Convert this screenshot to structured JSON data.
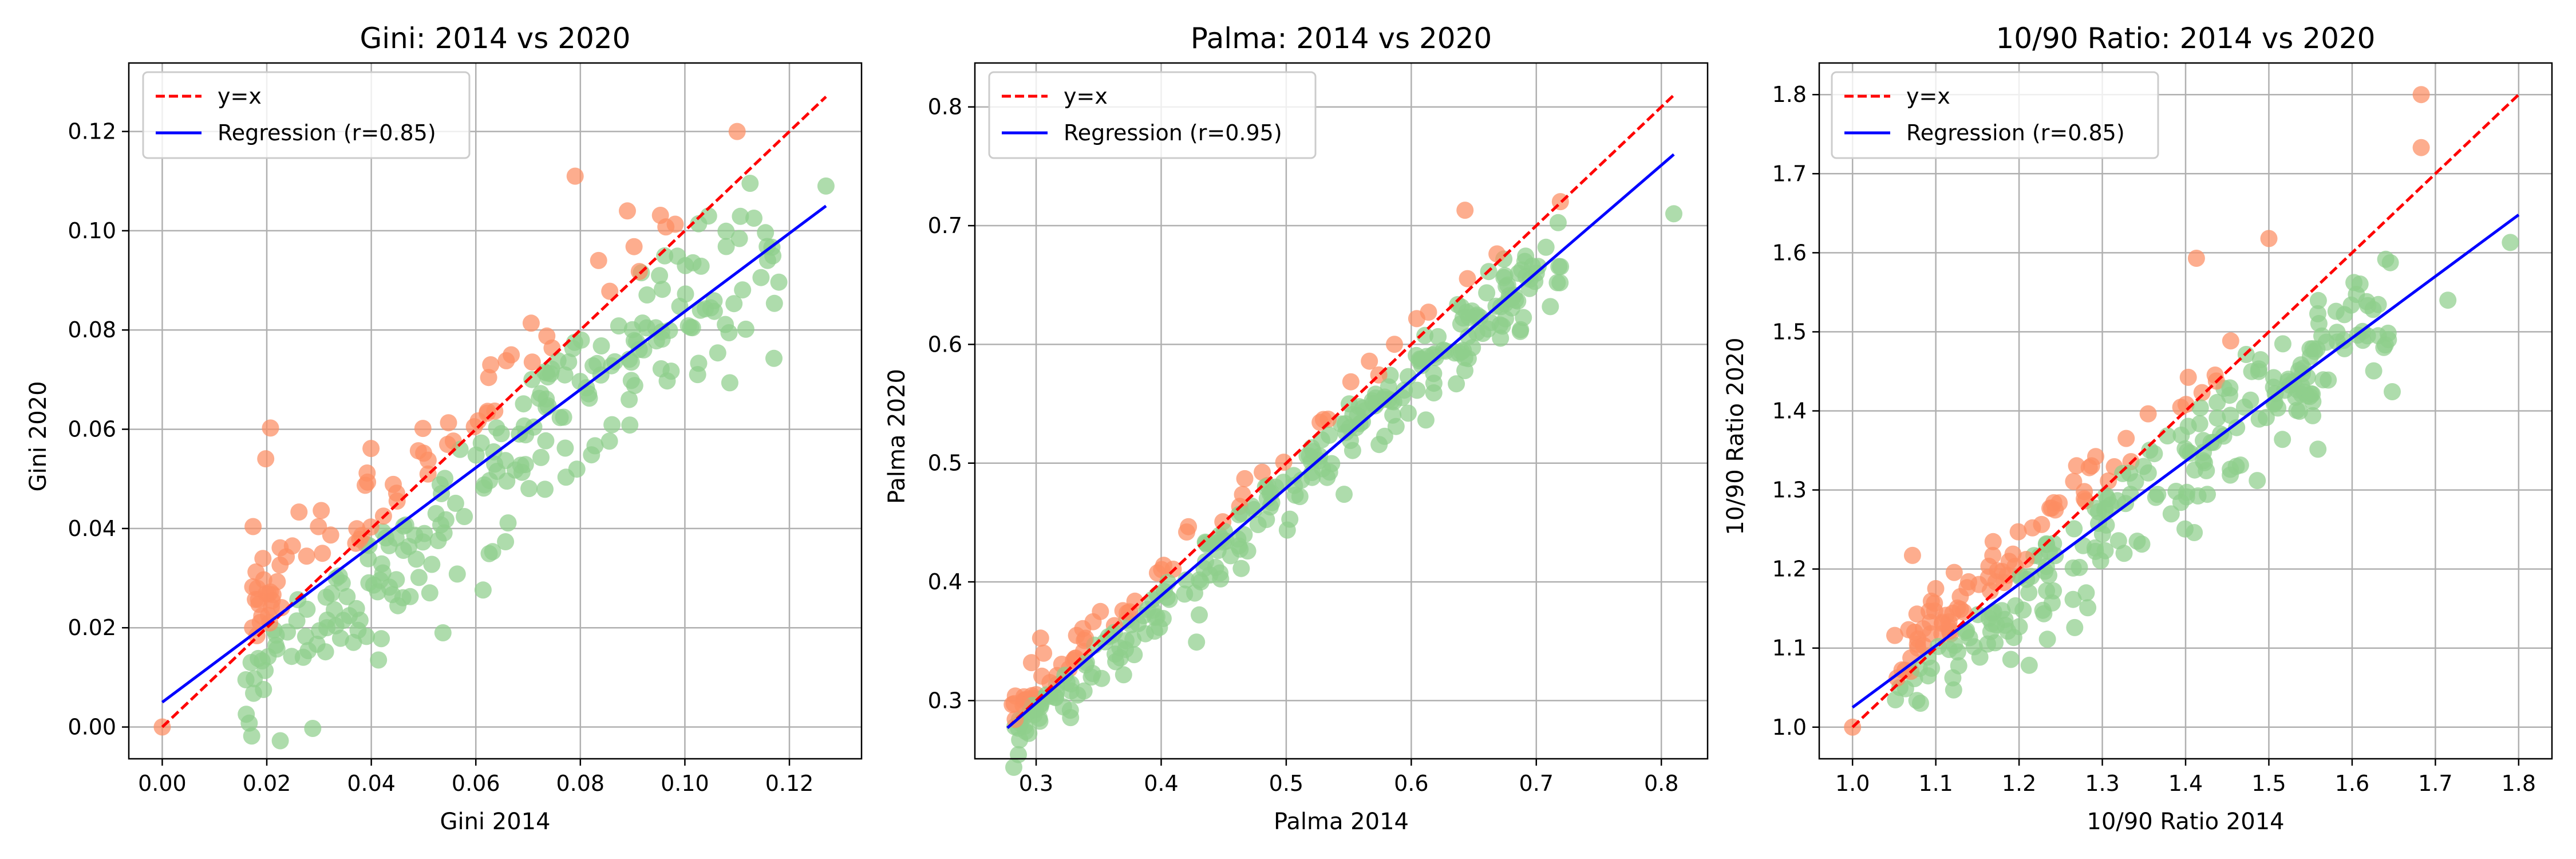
{
  "colors": {
    "above": "#fc8d62",
    "below": "#8fce8c",
    "identity_line": "#ff0000",
    "regression_line": "#0000ff",
    "grid": "#b0b0b0"
  },
  "chart_data": [
    {
      "type": "scatter",
      "title": "Gini: 2014 vs 2020",
      "xlabel": "Gini 2014",
      "ylabel": "Gini 2020",
      "xlim": [
        -0.0064,
        0.1338
      ],
      "ylim": [
        -0.0064,
        0.1338
      ],
      "xticks": [
        0.0,
        0.02,
        0.04,
        0.06,
        0.08,
        0.1,
        0.12
      ],
      "yticks": [
        0.0,
        0.02,
        0.04,
        0.06,
        0.08,
        0.1,
        0.12
      ],
      "tick_format": "2",
      "grid": true,
      "legend_position": "upper-left",
      "legend": [
        "y=x",
        "Regression (r=0.85)"
      ],
      "identity": [
        0.0,
        0.127
      ],
      "regression": {
        "x": [
          0.0,
          0.127
        ],
        "y": [
          0.005,
          0.105
        ]
      },
      "seed": 11,
      "n_points": 300,
      "cloud": {
        "xmin": 0.016,
        "xmax": 0.118,
        "slope": 0.78,
        "intercept": 0.005,
        "noise": 0.011
      },
      "fixed_points": [
        [
          0.0,
          0.0,
          "above"
        ],
        [
          0.127,
          0.109,
          "below"
        ],
        [
          0.079,
          0.111,
          "above"
        ],
        [
          0.11,
          0.12,
          "above"
        ],
        [
          0.089,
          0.104,
          "above"
        ],
        [
          0.017,
          0.013,
          "below"
        ]
      ]
    },
    {
      "type": "scatter",
      "title": "Palma: 2014 vs 2020",
      "xlabel": "Palma 2014",
      "ylabel": "Palma 2020",
      "xlim": [
        0.251,
        0.837
      ],
      "ylim": [
        0.251,
        0.837
      ],
      "xticks": [
        0.3,
        0.4,
        0.5,
        0.6,
        0.7,
        0.8
      ],
      "yticks": [
        0.3,
        0.4,
        0.5,
        0.6,
        0.7,
        0.8
      ],
      "tick_format": "1",
      "grid": true,
      "legend_position": "upper-left",
      "legend": [
        "y=x",
        "Regression (r=0.95)"
      ],
      "identity": [
        0.277,
        0.81
      ],
      "regression": {
        "x": [
          0.277,
          0.81
        ],
        "y": [
          0.277,
          0.76
        ]
      },
      "seed": 23,
      "n_points": 320,
      "cloud": {
        "xmin": 0.28,
        "xmax": 0.72,
        "slope": 0.91,
        "intercept": 0.025,
        "noise": 0.018
      },
      "fixed_points": [
        [
          0.81,
          0.71,
          "below"
        ],
        [
          0.643,
          0.713,
          "above"
        ],
        [
          0.283,
          0.278,
          "below"
        ],
        [
          0.29,
          0.3,
          "above"
        ],
        [
          0.3,
          0.305,
          "above"
        ],
        [
          0.7,
          0.66,
          "below"
        ]
      ]
    },
    {
      "type": "scatter",
      "title": "10/90 Ratio: 2014 vs 2020",
      "xlabel": "10/90 Ratio 2014",
      "ylabel": "10/90 Ratio 2020",
      "xlim": [
        0.96,
        1.84
      ],
      "ylim": [
        0.96,
        1.84
      ],
      "xticks": [
        1.0,
        1.1,
        1.2,
        1.3,
        1.4,
        1.5,
        1.6,
        1.7,
        1.8
      ],
      "yticks": [
        1.0,
        1.1,
        1.2,
        1.3,
        1.4,
        1.5,
        1.6,
        1.7,
        1.8
      ],
      "tick_format": "1",
      "grid": true,
      "legend_position": "upper-left",
      "legend": [
        "y=x",
        "Regression (r=0.85)"
      ],
      "identity": [
        1.0,
        1.8
      ],
      "regression": {
        "x": [
          1.0,
          1.8
        ],
        "y": [
          1.025,
          1.648
        ]
      },
      "seed": 37,
      "n_points": 300,
      "cloud": {
        "xmin": 1.05,
        "xmax": 1.65,
        "slope": 0.78,
        "intercept": 0.245,
        "noise": 0.045
      },
      "fixed_points": [
        [
          1.0,
          1.0,
          "above"
        ],
        [
          1.683,
          1.8,
          "above"
        ],
        [
          1.683,
          1.733,
          "above"
        ],
        [
          1.79,
          1.613,
          "below"
        ],
        [
          1.413,
          1.593,
          "above"
        ],
        [
          1.5,
          1.618,
          "above"
        ],
        [
          1.715,
          1.54,
          "below"
        ]
      ]
    }
  ]
}
